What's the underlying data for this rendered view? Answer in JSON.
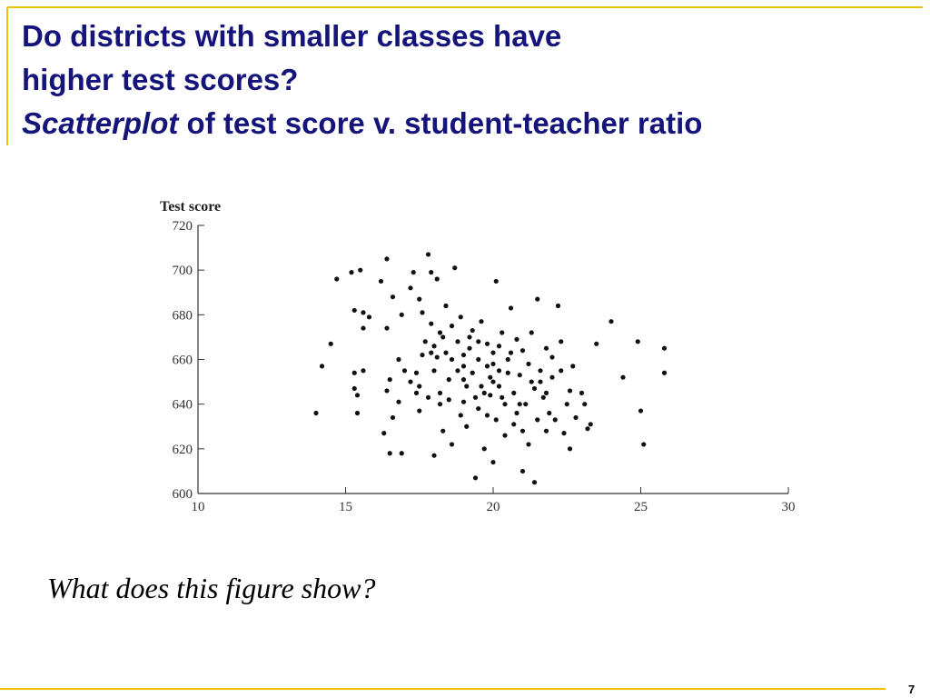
{
  "slide": {
    "title_lines": [
      "Do districts with smaller classes have",
      "higher test scores?"
    ],
    "subtitle_italic": "Scatterplot",
    "subtitle_rest": " of test score v. student-teacher ratio",
    "question": "What does this figure show?",
    "page_number": "7"
  },
  "chart_data": {
    "type": "scatter",
    "ylabel": "Test score",
    "color": "#111111",
    "xlim": [
      10,
      30
    ],
    "ylim": [
      600,
      720
    ],
    "xticks": [
      10,
      15,
      20,
      25,
      30
    ],
    "yticks": [
      600,
      620,
      640,
      660,
      680,
      700,
      720
    ],
    "x": [
      14.0,
      14.2,
      14.5,
      14.7,
      15.2,
      15.5,
      15.3,
      15.6,
      15.8,
      15.6,
      15.3,
      15.4,
      15.4,
      15.6,
      15.3,
      16.5,
      16.9,
      16.4,
      16.2,
      16.6,
      16.4,
      16.9,
      16.3,
      16.5,
      16.8,
      16.4,
      16.6,
      17.0,
      17.2,
      17.3,
      17.5,
      17.4,
      17.6,
      17.8,
      17.9,
      17.2,
      17.5,
      17.7,
      17.9,
      17.4,
      17.6,
      17.8,
      18.0,
      18.1,
      18.3,
      18.0,
      18.2,
      18.4,
      18.1,
      18.3,
      18.5,
      18.6,
      18.2,
      18.4,
      18.7,
      18.9,
      18.8,
      19.0,
      18.6,
      18.9,
      19.1,
      19.2,
      19.3,
      19.0,
      19.4,
      19.5,
      19.1,
      19.3,
      19.6,
      19.7,
      19.8,
      19.5,
      19.9,
      20.0,
      19.7,
      20.1,
      20.2,
      19.8,
      20.3,
      20.0,
      20.4,
      20.5,
      20.1,
      20.6,
      20.2,
      20.7,
      20.8,
      20.4,
      20.9,
      21.0,
      20.6,
      21.1,
      21.2,
      20.8,
      21.3,
      21.4,
      21.0,
      21.5,
      21.6,
      21.2,
      21.7,
      21.8,
      21.4,
      21.9,
      22.0,
      21.6,
      22.1,
      22.2,
      21.8,
      22.3,
      22.4,
      22.0,
      22.5,
      22.6,
      22.7,
      22.8,
      23.0,
      23.2,
      23.3,
      23.5,
      24.0,
      24.4,
      24.9,
      25.0,
      25.1,
      25.8,
      25.8,
      19.5,
      20.0,
      20.3,
      19.0,
      21.0,
      18.5,
      20.5,
      19.2,
      19.8,
      20.9,
      21.3,
      18.8,
      19.6,
      20.2,
      20.7,
      17.9,
      18.6,
      19.4,
      21.5,
      22.3,
      20.0,
      19.0,
      18.2,
      21.8,
      22.6,
      23.1,
      17.5,
      16.8,
      18.0,
      19.9
    ],
    "y": [
      636,
      657,
      667,
      696,
      699,
      700,
      682,
      681,
      679,
      674,
      654,
      644,
      636,
      655,
      647,
      618,
      618,
      705,
      695,
      688,
      674,
      680,
      627,
      651,
      660,
      646,
      634,
      655,
      692,
      699,
      687,
      645,
      662,
      707,
      699,
      650,
      637,
      668,
      676,
      654,
      681,
      643,
      617,
      696,
      670,
      655,
      640,
      684,
      661,
      628,
      651,
      675,
      645,
      663,
      701,
      635,
      668,
      657,
      622,
      679,
      648,
      665,
      673,
      641,
      607,
      660,
      630,
      654,
      677,
      645,
      667,
      638,
      652,
      663,
      620,
      695,
      648,
      657,
      672,
      614,
      640,
      660,
      633,
      683,
      655,
      645,
      669,
      626,
      653,
      610,
      663,
      640,
      658,
      636,
      672,
      647,
      628,
      687,
      655,
      622,
      643,
      665,
      605,
      636,
      661,
      650,
      633,
      684,
      645,
      668,
      627,
      652,
      640,
      620,
      657,
      634,
      645,
      629,
      631,
      667,
      677,
      652,
      668,
      637,
      622,
      665,
      654,
      668,
      650,
      643,
      662,
      664,
      642,
      654,
      670,
      635,
      640,
      650,
      655,
      648,
      666,
      631,
      663,
      660,
      643,
      633,
      655,
      658,
      651,
      672,
      628,
      646,
      640,
      648,
      641,
      666,
      644
    ]
  }
}
